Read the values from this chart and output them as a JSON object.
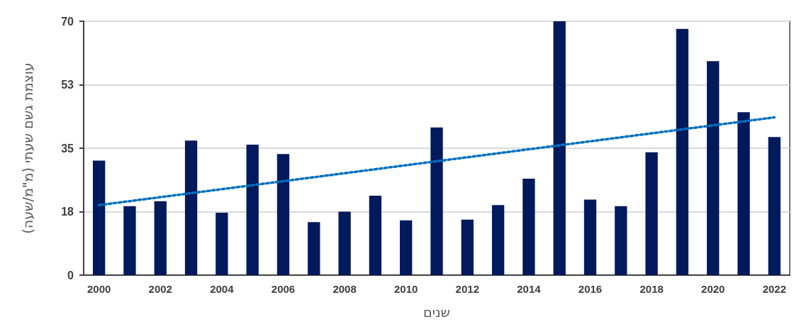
{
  "chart_data": {
    "type": "bar",
    "xlabel": "שנים",
    "ylabel": "עוצמת גשם שעתי (מ\"מ/שעה)",
    "categories": [
      "2000",
      null,
      "2002",
      null,
      "2004",
      null,
      "2006",
      null,
      "2008",
      null,
      "2010",
      null,
      "2012",
      null,
      "2014",
      null,
      "2016",
      null,
      "2018",
      null,
      "2020",
      null,
      "2022"
    ],
    "series": [
      {
        "color": "#001a5c",
        "values": [
          31.6,
          19.0,
          20.4,
          37.1,
          17.2,
          36.0,
          33.4,
          14.6,
          17.5,
          21.9,
          15.1,
          40.7,
          15.3,
          19.3,
          26.6,
          70,
          20.8,
          19.0,
          33.9,
          67.9,
          59.0,
          44.9,
          38.1
        ]
      },
      {
        "type": "line",
        "color": "#0070c0",
        "line_style": "dotted",
        "marker": "none",
        "values": [
          19.3,
          20.4,
          21.5,
          22.6,
          23.7,
          24.8,
          25.9,
          27.0,
          28.1,
          29.2,
          30.3,
          31.4,
          32.5,
          33.6,
          34.7,
          35.8,
          36.9,
          38.0,
          39.1,
          40.2,
          41.3,
          42.4,
          43.5
        ]
      }
    ],
    "ylim": [
      0,
      70
    ],
    "yticks": [
      0,
      {
        "value": 17.5,
        "label": "18"
      },
      35,
      {
        "value": 52.5,
        "label": "53"
      },
      70
    ],
    "grid": "y"
  }
}
